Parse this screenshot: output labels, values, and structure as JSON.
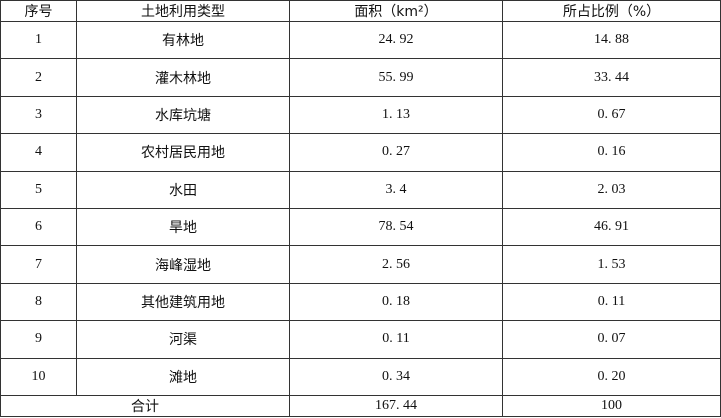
{
  "headers": [
    "序号",
    "土地利用类型",
    "面积（km²）",
    "所占比例（%）"
  ],
  "rows": [
    {
      "no": "1",
      "type": "有林地",
      "area": "24. 92",
      "ratio": "14. 88"
    },
    {
      "no": "2",
      "type": "灌木林地",
      "area": "55. 99",
      "ratio": "33. 44"
    },
    {
      "no": "3",
      "type": "水库坑塘",
      "area": "1. 13",
      "ratio": "0. 67"
    },
    {
      "no": "4",
      "type": "农村居民用地",
      "area": "0. 27",
      "ratio": "0. 16"
    },
    {
      "no": "5",
      "type": "水田",
      "area": "3. 4",
      "ratio": "2. 03"
    },
    {
      "no": "6",
      "type": "旱地",
      "area": "78. 54",
      "ratio": "46. 91"
    },
    {
      "no": "7",
      "type": "海峰湿地",
      "area": "2. 56",
      "ratio": "1. 53"
    },
    {
      "no": "8",
      "type": "其他建筑用地",
      "area": "0. 18",
      "ratio": "0. 11"
    },
    {
      "no": "9",
      "type": "河渠",
      "area": "0. 11",
      "ratio": "0. 07"
    },
    {
      "no": "10",
      "type": "滩地",
      "area": "0. 34",
      "ratio": "0. 20"
    }
  ],
  "total": {
    "label": "合计",
    "area": "167. 44",
    "ratio": "100"
  }
}
